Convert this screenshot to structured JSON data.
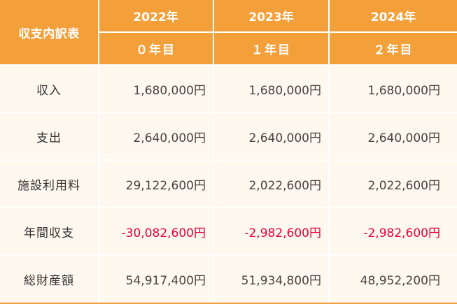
{
  "header": {
    "corner_label": "収支内訳表",
    "years": [
      "2022年",
      "2023年",
      "2024年"
    ],
    "nth_years": [
      "０年目",
      "１年目",
      "２年目"
    ]
  },
  "rows": [
    {
      "label": "収入",
      "values": [
        "1,680,000円",
        "1,680,000円",
        "1,680,000円"
      ],
      "negative": [
        false,
        false,
        false
      ]
    },
    {
      "label": "支出",
      "values": [
        "2,640,000円",
        "2,640,000円",
        "2,640,000円"
      ],
      "negative": [
        false,
        false,
        false
      ]
    },
    {
      "label": "施設利用料",
      "values": [
        "29,122,600円",
        "2,022,600円",
        "2,022,600円"
      ],
      "negative": [
        false,
        false,
        false
      ]
    },
    {
      "label": "年間収支",
      "values": [
        "-30,082,600円",
        "-2,982,600円",
        "-2,982,600円"
      ],
      "negative": [
        true,
        true,
        true
      ]
    },
    {
      "label": "総財産額",
      "values": [
        "54,917,400円",
        "51,934,800円",
        "48,952,200円"
      ],
      "negative": [
        false,
        false,
        false
      ]
    }
  ],
  "colors": {
    "header_bg": "#f3a03a",
    "body_bg": "#fef8ee",
    "negative_text": "#e8003c",
    "text": "#444444"
  }
}
